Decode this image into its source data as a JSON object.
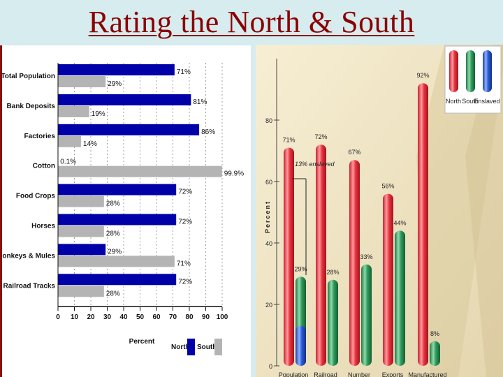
{
  "slide": {
    "title": "Rating the North & South"
  },
  "colors": {
    "north": "#0000a8",
    "south": "#b4b4b4",
    "title": "#8b0000",
    "red": "#e8323c",
    "green": "#2e9a5a",
    "blue": "#2a5bd7"
  },
  "chart_data": [
    {
      "type": "bar",
      "orientation": "horizontal",
      "title": "",
      "categories": [
        "Total Population",
        "Bank Deposits",
        "Factories",
        "Cotton",
        "Food Crops",
        "Horses",
        "Donkeys & Mules",
        "Railroad Tracks"
      ],
      "series": [
        {
          "name": "North",
          "values": [
            71,
            81,
            86,
            0.1,
            72,
            72,
            29,
            72
          ],
          "labels": [
            "71%",
            "81%",
            "86%",
            "0.1%",
            "72%",
            "72%",
            "29%",
            "72%"
          ]
        },
        {
          "name": "South",
          "values": [
            29,
            19,
            14,
            99.9,
            28,
            28,
            71,
            28
          ],
          "labels": [
            "29%",
            "19%",
            "14%",
            "99.9%",
            "28%",
            "28%",
            "71%",
            "28%"
          ]
        }
      ],
      "xlabel": "Percent",
      "xlim": [
        0,
        100
      ],
      "xticks": [
        "0",
        "10",
        "20",
        "30",
        "40",
        "50",
        "60",
        "70",
        "80",
        "90",
        "100"
      ],
      "legend": {
        "north": "North",
        "south": "South",
        "placement": "bottom-right"
      }
    },
    {
      "type": "bar",
      "orientation": "vertical",
      "title": "",
      "ylabel": "Percent",
      "ylim": [
        0,
        100
      ],
      "yticks": [
        "0",
        "20",
        "40",
        "60",
        "80"
      ],
      "categories": [
        "Population",
        "Railroad mileage",
        "Number of farms",
        "Exports",
        "Manufactured goods"
      ],
      "series": [
        {
          "name": "North",
          "values": [
            71,
            72,
            67,
            56,
            92
          ],
          "labels": [
            "71%",
            "72%",
            "67%",
            "56%",
            "92%"
          ]
        },
        {
          "name": "South",
          "values": [
            29,
            28,
            33,
            44,
            8
          ],
          "labels": [
            "29%",
            "28%",
            "33%",
            "44%",
            "8%"
          ]
        }
      ],
      "enslaved": {
        "value": 13,
        "label": "13% enslaved"
      },
      "legend": [
        "North",
        "South",
        "Enslaved"
      ]
    }
  ]
}
